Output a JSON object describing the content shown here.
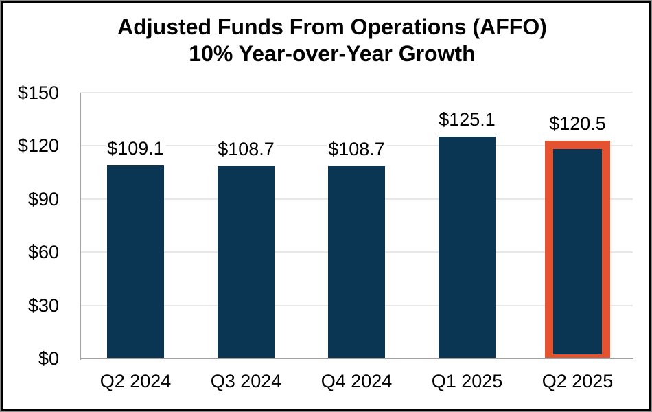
{
  "chart_data": {
    "type": "bar",
    "title": "Adjusted Funds From Operations (AFFO)",
    "subtitle": "10% Year-over-Year Growth",
    "categories": [
      "Q2 2024",
      "Q3 2024",
      "Q4 2024",
      "Q1 2025",
      "Q2 2025"
    ],
    "values": [
      109.1,
      108.7,
      108.7,
      125.1,
      120.5
    ],
    "value_labels": [
      "$109.1",
      "$108.7",
      "$108.7",
      "$125.1",
      "$120.5"
    ],
    "xlabel": "",
    "ylabel": "",
    "ylim": [
      0,
      150
    ],
    "ytick_values": [
      0,
      30,
      60,
      90,
      120,
      150
    ],
    "ytick_labels": [
      "$0",
      "$30",
      "$60",
      "$90",
      "$120",
      "$150"
    ],
    "grid": true,
    "legend": false,
    "highlight": {
      "index": 4,
      "category": "Q2 2025",
      "color": "#E4522F"
    },
    "colors": {
      "bar": "#0A3553",
      "gridline": "#E7E7E7",
      "axis_line": "#A3A3A3",
      "text": "#000000",
      "background": "#FFFFFF",
      "frame_border": "#000000"
    }
  }
}
